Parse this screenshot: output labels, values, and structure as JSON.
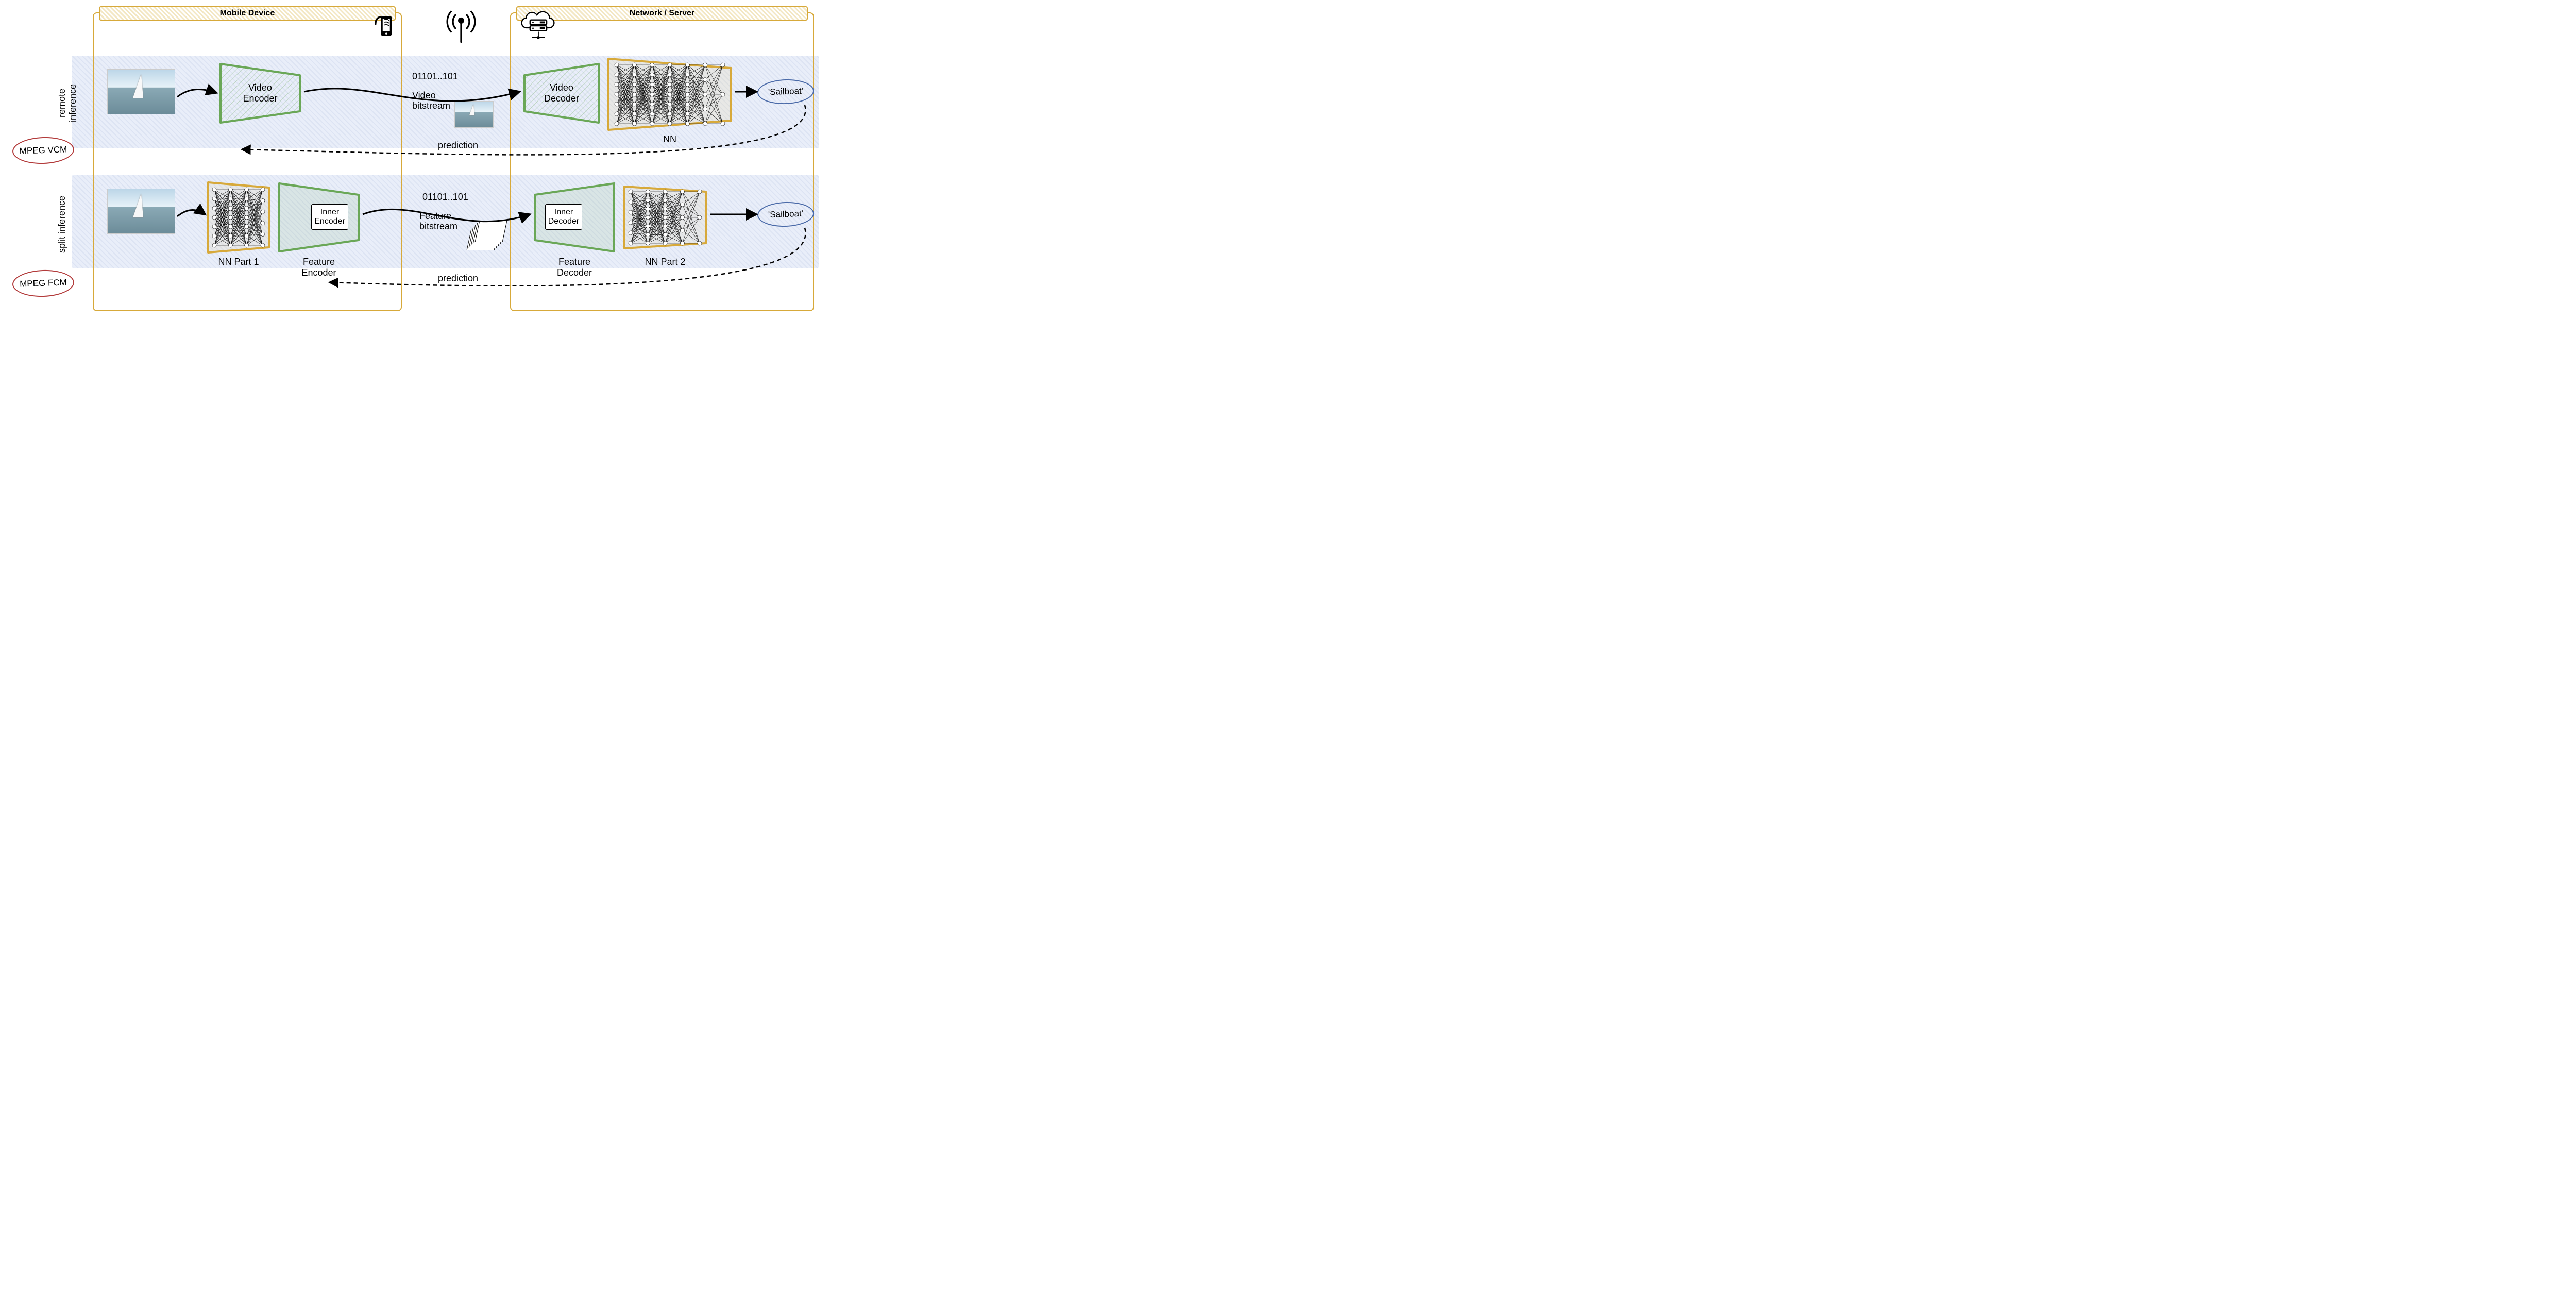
{
  "panels": {
    "mobile": {
      "title": "Mobile Device"
    },
    "server": {
      "title": "Network / Server"
    }
  },
  "rows": {
    "remote": {
      "label": "remote\ninference"
    },
    "split": {
      "label": "split\ninference"
    }
  },
  "badges": {
    "vcm": "MPEG VCM",
    "fcm": "MPEG FCM",
    "out1": "'Sailboat'",
    "out2": "'Sailboat'"
  },
  "blocks": {
    "video_encoder": "Video\nEncoder",
    "video_decoder": "Video\nDecoder",
    "nn": "NN",
    "nn_part1": "NN Part 1",
    "nn_part2": "NN Part 2",
    "feature_encoder": "Feature\nEncoder",
    "feature_decoder": "Feature\nDecoder",
    "inner_encoder": "Inner\nEncoder",
    "inner_decoder": "Inner\nDecoder"
  },
  "flow": {
    "bits": "01101..101",
    "video_bitstream": "Video\nbitstream",
    "feature_bitstream": "Feature\nbitstream",
    "prediction": "prediction"
  },
  "colors": {
    "panel_border": "#d7a93a",
    "green": "#6aa757",
    "orange": "#d7a93a",
    "blue_badge": "#4a6aa8",
    "red_badge": "#b23a3a",
    "row_bg": "#e9eef9"
  }
}
